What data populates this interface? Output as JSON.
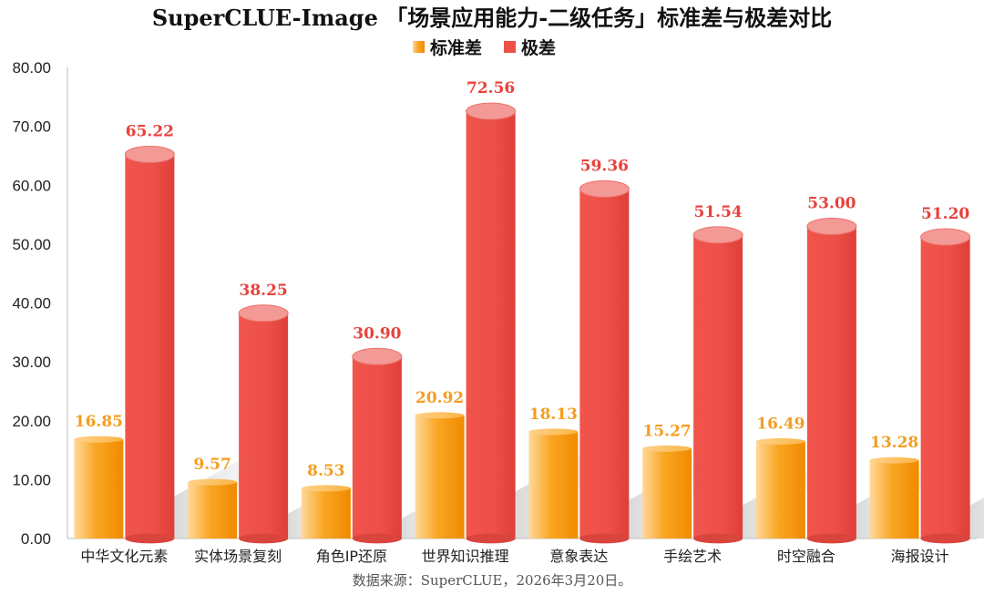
{
  "chart_data": {
    "type": "bar",
    "title": "SuperCLUE-Image 「场景应用能力-二级任务」标准差与极差对比",
    "categories": [
      "中华文化元素",
      "实体场景复刻",
      "角色IP还原",
      "世界知识推理",
      "意象表达",
      "手绘艺术",
      "时空融合",
      "海报设计"
    ],
    "series": [
      {
        "name": "标准差",
        "values": [
          16.85,
          9.57,
          8.53,
          20.92,
          18.13,
          15.27,
          16.49,
          13.28
        ],
        "labels": [
          "16.85",
          "9.57",
          "8.53",
          "20.92",
          "18.13",
          "15.27",
          "16.49",
          "13.28"
        ],
        "color": "#f7a21b"
      },
      {
        "name": "极差",
        "values": [
          65.22,
          38.25,
          30.9,
          72.56,
          59.36,
          51.54,
          53.0,
          51.2
        ],
        "labels": [
          "65.22",
          "38.25",
          "30.90",
          "72.56",
          "59.36",
          "51.54",
          "53.00",
          "51.20"
        ],
        "color": "#ec5048"
      }
    ],
    "ylim": [
      0,
      80
    ],
    "yticks": [
      "0.00",
      "10.00",
      "20.00",
      "30.00",
      "40.00",
      "50.00",
      "60.00",
      "70.00",
      "80.00"
    ],
    "legend": "top-center",
    "grid": false,
    "xlabel": "",
    "ylabel": "",
    "source": "数据来源：SuperCLUE，2026年3月20日。"
  }
}
